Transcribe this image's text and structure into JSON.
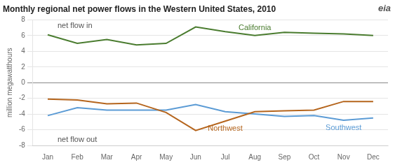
{
  "chart_data": {
    "type": "line",
    "title": "Monthly regional net power flows in the Western United States, 2010",
    "ylabel": "million megawatthours",
    "categories": [
      "Jan",
      "Feb",
      "Mar",
      "Apr",
      "May",
      "Jun",
      "Jul",
      "Aug",
      "Sep",
      "Oct",
      "Nov",
      "Dec"
    ],
    "series": [
      {
        "name": "California",
        "color": "#4a7c2f",
        "values": [
          6.1,
          5.0,
          5.5,
          4.8,
          5.0,
          7.1,
          6.5,
          6.0,
          6.4,
          6.3,
          6.2,
          6.0
        ]
      },
      {
        "name": "Northwest",
        "color": "#b5651d",
        "values": [
          -2.1,
          -2.2,
          -2.7,
          -2.6,
          -3.8,
          -6.1,
          -4.9,
          -3.7,
          -3.6,
          -3.5,
          -2.4,
          -2.4
        ]
      },
      {
        "name": "Southwest",
        "color": "#5b9bd5",
        "values": [
          -4.2,
          -3.2,
          -3.5,
          -3.5,
          -3.5,
          -2.8,
          -3.7,
          -4.0,
          -4.3,
          -4.2,
          -4.8,
          -4.5
        ]
      }
    ],
    "ylim": [
      -8,
      8
    ],
    "yticks": [
      -8,
      -6,
      -4,
      -2,
      0,
      2,
      4,
      6,
      8
    ],
    "grid": true,
    "annotations": [
      "net flow in",
      "net flow out",
      "eia"
    ]
  }
}
